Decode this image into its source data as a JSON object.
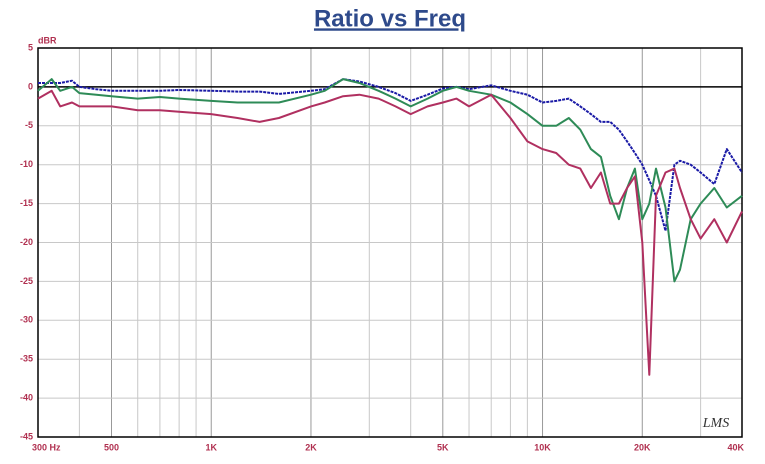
{
  "chart_data": {
    "type": "line",
    "title": "Ratio vs Freq",
    "y_label": "dBR",
    "watermark": "LMS",
    "xscale": "log",
    "grid": true,
    "x": [
      300,
      330,
      350,
      380,
      400,
      450,
      500,
      600,
      700,
      800,
      1000,
      1200,
      1400,
      1600,
      2000,
      2200,
      2500,
      2800,
      3200,
      3600,
      4000,
      4500,
      5000,
      5500,
      6000,
      7000,
      8000,
      9000,
      10000,
      11000,
      12000,
      13000,
      14000,
      15000,
      16000,
      17000,
      18000,
      19000,
      20000,
      21000,
      22000,
      23500,
      25000,
      26000,
      28000,
      30000,
      33000,
      36000,
      40000
    ],
    "series": [
      {
        "name": "Blue",
        "color": "#1a1aa6",
        "values": [
          0.5,
          0.5,
          0.5,
          0.8,
          0,
          -0.3,
          -0.5,
          -0.5,
          -0.5,
          -0.4,
          -0.5,
          -0.6,
          -0.6,
          -0.9,
          -0.5,
          -0.3,
          1,
          0.7,
          0,
          -0.8,
          -1.8,
          -1,
          -0.2,
          0,
          -0.3,
          0.2,
          -0.5,
          -1,
          -2,
          -1.8,
          -1.5,
          -2.5,
          -3.5,
          -4.5,
          -4.5,
          -5.5,
          -7,
          -8.5,
          -10,
          -12,
          -14,
          -18.5,
          -10,
          -9.5,
          -10,
          -11,
          -12.5,
          -8,
          -11
        ]
      },
      {
        "name": "Green",
        "color": "#2e8b57",
        "values": [
          -0.5,
          1,
          -0.5,
          0,
          -0.8,
          -1,
          -1.2,
          -1.5,
          -1.3,
          -1.5,
          -1.8,
          -2,
          -2,
          -2,
          -1,
          -0.5,
          1,
          0.5,
          -0.5,
          -1.5,
          -2.5,
          -1.5,
          -0.5,
          0,
          -0.5,
          -1,
          -2,
          -3.5,
          -5,
          -5,
          -4,
          -5.5,
          -8,
          -9,
          -14,
          -17,
          -13,
          -10.5,
          -17,
          -15,
          -10.5,
          -15.5,
          -25,
          -23.5,
          -17,
          -15,
          -13,
          -15.5,
          -14
        ]
      },
      {
        "name": "Magenta",
        "color": "#b03060",
        "values": [
          -1.5,
          -0.5,
          -2.5,
          -2,
          -2.5,
          -2.5,
          -2.5,
          -3,
          -3,
          -3.2,
          -3.5,
          -4,
          -4.5,
          -4,
          -2.5,
          -2,
          -1.2,
          -1,
          -1.5,
          -2.5,
          -3.5,
          -2.5,
          -2,
          -1.5,
          -2.5,
          -1,
          -4,
          -7,
          -8,
          -8.5,
          -10,
          -10.5,
          -13,
          -11,
          -15,
          -15,
          -13,
          -11.5,
          -20,
          -37,
          -14,
          -11,
          -10.5,
          -13,
          -17,
          -19.5,
          -17,
          -20,
          -16
        ]
      }
    ],
    "xlim": [
      300,
      40000
    ],
    "xticks": [
      {
        "value": 300,
        "label": "300 Hz"
      },
      500,
      {
        "value": 1000,
        "label": "1K"
      },
      {
        "value": 2000,
        "label": "2K"
      },
      {
        "value": 5000,
        "label": "5K"
      },
      {
        "value": 10000,
        "label": "10K"
      },
      {
        "value": 20000,
        "label": "20K"
      },
      {
        "value": 40000,
        "label": "40K"
      }
    ],
    "xminorticks": [
      400,
      600,
      700,
      800,
      900,
      3000,
      4000,
      6000,
      7000,
      8000,
      9000,
      30000
    ],
    "ylim": [
      -45,
      5
    ],
    "yticks": [
      5,
      0,
      -5,
      -10,
      -15,
      -20,
      -25,
      -30,
      -35,
      -40,
      -45
    ]
  }
}
